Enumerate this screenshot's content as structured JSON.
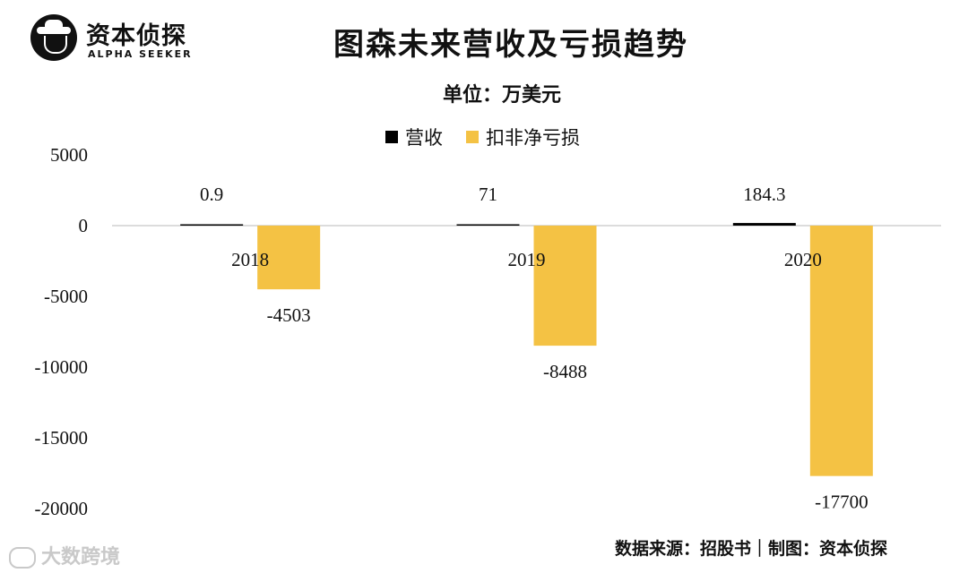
{
  "brand": {
    "name": "资本侦探",
    "subtitle": "ALPHA SEEKER"
  },
  "chart_data": {
    "type": "bar",
    "title": "图森未来营收及亏损趋势",
    "subtitle": "单位：万美元",
    "categories": [
      "2018",
      "2019",
      "2020"
    ],
    "series": [
      {
        "name": "营收",
        "color": "#000000",
        "values": [
          0.9,
          71,
          184.3
        ],
        "labels": [
          "0.9",
          "71",
          "184.3"
        ]
      },
      {
        "name": "扣非净亏损",
        "color": "#F4C244",
        "values": [
          -4503,
          -8488,
          -17700
        ],
        "labels": [
          "-4503",
          "-8488",
          "-17700"
        ]
      }
    ],
    "ylim": [
      -20000,
      5000
    ],
    "yticks": [
      5000,
      0,
      -5000,
      -10000,
      -15000,
      -20000
    ],
    "ytick_labels": [
      "5000",
      "0",
      "-5000",
      "-10000",
      "-15000",
      "-20000"
    ],
    "grid": false,
    "legend_position": "top-center"
  },
  "source": "数据来源：招股书｜制图：资本侦探",
  "watermark": "大数跨境"
}
